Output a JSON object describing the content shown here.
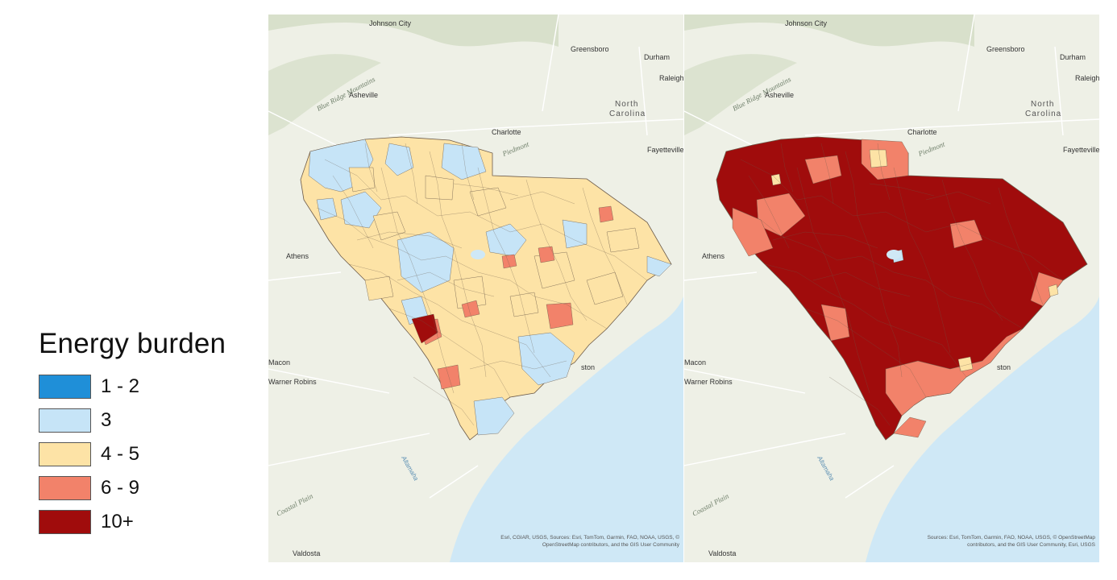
{
  "legend": {
    "title": "Energy burden",
    "classes": [
      {
        "label": "1 - 2",
        "color": "#1f8fd8"
      },
      {
        "label": "3",
        "color": "#c6e4f7"
      },
      {
        "label": "4 - 5",
        "color": "#fde3a6"
      },
      {
        "label": "6 - 9",
        "color": "#f2826a"
      },
      {
        "label": "10+",
        "color": "#a00c0c"
      }
    ]
  },
  "map_labels": {
    "johnson_city": "Johnson City",
    "greensboro": "Greensboro",
    "durham": "Durham",
    "raleigh": "Raleigh",
    "asheville": "Asheville",
    "blue_ridge": "Blue Ridge Mountains",
    "north_carolina_1": "North",
    "north_carolina_2": "Carolina",
    "charlotte": "Charlotte",
    "piedmont": "Piedmont",
    "fayetteville": "Fayetteville",
    "athens": "Athens",
    "macon": "Macon",
    "warner_robins": "Warner Robins",
    "charleston": "ston",
    "coastal_plain": "Coastal Plain",
    "altamaha": "Altamaha",
    "valdosta": "Valdosta"
  },
  "maps": {
    "left": {
      "base_color": "#fde3a6",
      "attribution_1": "Esri, CGIAR, USGS, Sources: Esri, TomTom, Garmin, FAO, NOAA, USGS, ©",
      "attribution_2": "OpenStreetMap contributors, and the GIS User Community"
    },
    "right": {
      "base_color": "#a00c0c",
      "attribution_1": "Sources: Esri, TomTom, Garmin, FAO, NOAA, USGS, © OpenStreetMap",
      "attribution_2": "contributors, and the GIS User Community, Esri, USGS"
    }
  },
  "colors": {
    "land": "#eef0e6",
    "water": "#cfe8f6",
    "forest": "#d4ddc6",
    "road": "#ffffff"
  }
}
